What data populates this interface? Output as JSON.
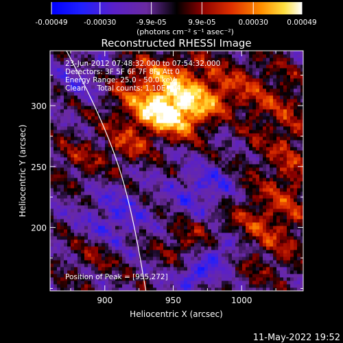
{
  "chart_data": {
    "type": "heatmap",
    "title": "Reconstructed RHESSI Image",
    "xlabel": "Heliocentric X (arcsec)",
    "ylabel": "Heliocentric Y (arcsec)",
    "xlim": [
      860,
      1045
    ],
    "ylim": [
      148,
      345
    ],
    "x_ticks": [
      900,
      950,
      1000
    ],
    "y_ticks": [
      200,
      250,
      300
    ],
    "colorbar": {
      "ticks": [
        "-0.00049",
        "-0.00030",
        "-9.9e-05",
        "9.9e-05",
        "0.00030",
        "0.00049"
      ],
      "tick_values": [
        -0.00049,
        -0.0003,
        -9.9e-05,
        9.9e-05,
        0.0003,
        0.00049
      ],
      "range": [
        -0.00049,
        0.00049
      ],
      "units_label": "(photons cm⁻² s⁻¹ asec⁻²)"
    },
    "annotations": {
      "time_range": "23-Jun-2012 07:48:32.000 to 07:54:32.000",
      "detectors": "Detectors: 3F 5F 6F 7F 8F, Att 0",
      "energy_range": "Energy Range: 25.0 - 50.0 keV",
      "method": "Clean     Total counts: 1.10E+04",
      "peak": "Position of Peak = [955,272]"
    },
    "peak_position": [
      955,
      272
    ],
    "limb_points": [
      [
        872,
        345
      ],
      [
        893,
        300
      ],
      [
        911,
        250
      ],
      [
        922,
        200
      ],
      [
        930,
        148
      ]
    ],
    "sources": [
      {
        "x": 950,
        "y": 305,
        "sx": 30,
        "sy": 18,
        "amp": 0.00046
      },
      {
        "x": 945,
        "y": 290,
        "sx": 18,
        "sy": 12,
        "amp": 0.00028
      },
      {
        "x": 915,
        "y": 265,
        "sx": 12,
        "sy": 10,
        "amp": 0.0002
      },
      {
        "x": 1010,
        "y": 300,
        "sx": 22,
        "sy": 28,
        "amp": 0.00016
      },
      {
        "x": 1010,
        "y": 200,
        "sx": 22,
        "sy": 30,
        "amp": 0.00022
      },
      {
        "x": 960,
        "y": 185,
        "sx": 15,
        "sy": 12,
        "amp": 0.00018
      },
      {
        "x": 880,
        "y": 255,
        "sx": 14,
        "sy": 14,
        "amp": 0.00015
      },
      {
        "x": 890,
        "y": 175,
        "sx": 16,
        "sy": 14,
        "amp": 0.00013
      },
      {
        "x": 1035,
        "y": 250,
        "sx": 10,
        "sy": 40,
        "amp": 0.00016
      },
      {
        "x": 940,
        "y": 330,
        "sx": 20,
        "sy": 10,
        "amp": 0.00012
      },
      {
        "x": 975,
        "y": 230,
        "sx": 18,
        "sy": 14,
        "amp": -0.00022
      },
      {
        "x": 985,
        "y": 180,
        "sx": 12,
        "sy": 10,
        "amp": -0.0003
      },
      {
        "x": 965,
        "y": 160,
        "sx": 10,
        "sy": 8,
        "amp": -0.00028
      },
      {
        "x": 905,
        "y": 205,
        "sx": 16,
        "sy": 16,
        "amp": -0.00018
      },
      {
        "x": 990,
        "y": 285,
        "sx": 12,
        "sy": 12,
        "amp": -0.00016
      },
      {
        "x": 885,
        "y": 320,
        "sx": 14,
        "sy": 14,
        "amp": -0.00012
      }
    ]
  },
  "footer": {
    "timestamp": "11-May-2022 19:52"
  }
}
